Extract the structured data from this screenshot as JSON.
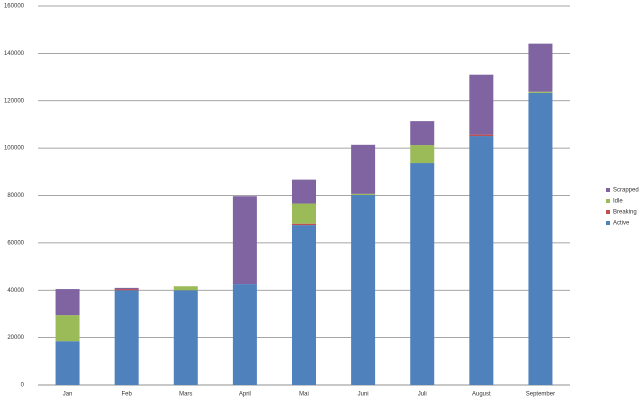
{
  "chart_data": {
    "type": "bar",
    "stacked": true,
    "categories": [
      "Jan",
      "Feb",
      "Mars",
      "April",
      "Mai",
      "Juni",
      "Juli",
      "August",
      "September"
    ],
    "series": [
      {
        "name": "Active",
        "color": "#4f81bd",
        "values": [
          18500,
          40000,
          40000,
          42600,
          67500,
          80200,
          93700,
          105100,
          123300
        ]
      },
      {
        "name": "Breaking",
        "color": "#c0504d",
        "values": [
          0,
          500,
          0,
          0,
          600,
          0,
          0,
          600,
          0
        ]
      },
      {
        "name": "Idle",
        "color": "#9bbb59",
        "values": [
          11000,
          0,
          1700,
          0,
          8500,
          500,
          7600,
          0,
          500
        ]
      },
      {
        "name": "Scrapped",
        "color": "#8064a2",
        "values": [
          11000,
          500,
          0,
          37100,
          10100,
          20700,
          10100,
          25300,
          20300
        ]
      }
    ],
    "ylim": [
      0,
      160000
    ],
    "yticks": [
      0,
      20000,
      40000,
      60000,
      80000,
      100000,
      120000,
      140000,
      160000
    ],
    "grid": true,
    "legend": "right"
  }
}
